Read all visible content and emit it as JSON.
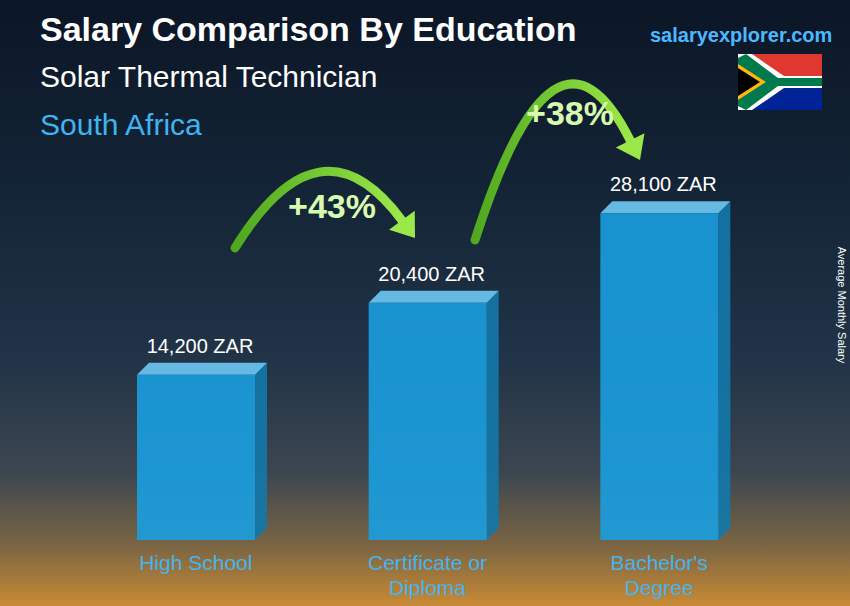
{
  "chart_data": {
    "type": "bar",
    "title": "Salary Comparison By Education",
    "subtitle": "Solar Thermal Technician",
    "location": "South Africa",
    "source": "salaryexplorer.com",
    "y_label": "Average Monthly Salary",
    "categories": [
      "High School",
      "Certificate or Diploma",
      "Bachelor's Degree"
    ],
    "values": [
      14200,
      20400,
      28100
    ],
    "value_labels": [
      "14,200 ZAR",
      "20,400 ZAR",
      "28,100 ZAR"
    ],
    "color": "#1a9fe0",
    "ylim": [
      0,
      35000
    ],
    "data_labels": true,
    "tick_labels": "x",
    "grid": false,
    "annotations": [
      {
        "text": "+43%",
        "from": "High School",
        "to": "Certificate or Diploma"
      },
      {
        "text": "+38%",
        "from": "Certificate or Diploma",
        "to": "Bachelor's Degree"
      }
    ]
  }
}
